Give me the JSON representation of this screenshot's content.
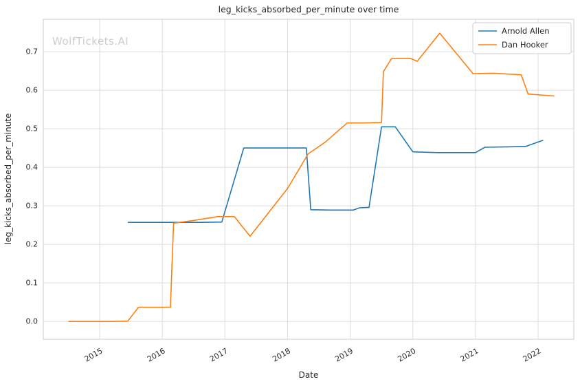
{
  "chart_data": {
    "type": "line",
    "title": "leg_kicks_absorbed_per_minute over time",
    "xlabel": "Date",
    "ylabel": "leg_kicks_absorbed_per_minute",
    "watermark": "WolfTickets.AI",
    "grid": true,
    "legend_position": "upper right",
    "xlim": [
      2014.1,
      2022.57
    ],
    "ylim": [
      -0.046,
      0.784
    ],
    "x_ticks": [
      {
        "value": 2015,
        "label": "2015"
      },
      {
        "value": 2016,
        "label": "2016"
      },
      {
        "value": 2017,
        "label": "2017"
      },
      {
        "value": 2018,
        "label": "2018"
      },
      {
        "value": 2019,
        "label": "2019"
      },
      {
        "value": 2020,
        "label": "2020"
      },
      {
        "value": 2021,
        "label": "2021"
      },
      {
        "value": 2022,
        "label": "2022"
      }
    ],
    "y_ticks": [
      {
        "value": 0.0,
        "label": "0.0"
      },
      {
        "value": 0.1,
        "label": "0.1"
      },
      {
        "value": 0.2,
        "label": "0.2"
      },
      {
        "value": 0.3,
        "label": "0.3"
      },
      {
        "value": 0.4,
        "label": "0.4"
      },
      {
        "value": 0.5,
        "label": "0.5"
      },
      {
        "value": 0.6,
        "label": "0.6"
      },
      {
        "value": 0.7,
        "label": "0.7"
      }
    ],
    "colors": {
      "grid": "#dddddd",
      "spine": "#cccccc",
      "text": "#262626",
      "watermark": "#cccccc",
      "series_blue": "#1f77b4",
      "series_orange": "#ff7f0e"
    },
    "series": [
      {
        "name": "Arnold Allen",
        "color": "#1f77b4",
        "points": [
          [
            2015.45,
            0.257
          ],
          [
            2015.9,
            0.257
          ],
          [
            2016.25,
            0.257
          ],
          [
            2016.6,
            0.257
          ],
          [
            2016.95,
            0.258
          ],
          [
            2017.3,
            0.45
          ],
          [
            2017.6,
            0.45
          ],
          [
            2018.0,
            0.45
          ],
          [
            2018.3,
            0.45
          ],
          [
            2018.37,
            0.29
          ],
          [
            2018.7,
            0.289
          ],
          [
            2019.05,
            0.289
          ],
          [
            2019.15,
            0.295
          ],
          [
            2019.3,
            0.296
          ],
          [
            2019.5,
            0.505
          ],
          [
            2019.72,
            0.505
          ],
          [
            2020.0,
            0.44
          ],
          [
            2020.4,
            0.438
          ],
          [
            2021.0,
            0.438
          ],
          [
            2021.15,
            0.452
          ],
          [
            2021.5,
            0.453
          ],
          [
            2021.8,
            0.454
          ],
          [
            2022.08,
            0.47
          ]
        ]
      },
      {
        "name": "Dan Hooker",
        "color": "#ff7f0e",
        "points": [
          [
            2014.5,
            0.0
          ],
          [
            2014.85,
            0.0
          ],
          [
            2015.2,
            0.0
          ],
          [
            2015.45,
            0.001
          ],
          [
            2015.62,
            0.037
          ],
          [
            2015.95,
            0.037
          ],
          [
            2016.13,
            0.037
          ],
          [
            2016.18,
            0.255
          ],
          [
            2016.5,
            0.262
          ],
          [
            2016.88,
            0.272
          ],
          [
            2017.15,
            0.272
          ],
          [
            2017.4,
            0.221
          ],
          [
            2018.0,
            0.345
          ],
          [
            2018.33,
            0.435
          ],
          [
            2018.6,
            0.465
          ],
          [
            2018.95,
            0.515
          ],
          [
            2019.2,
            0.515
          ],
          [
            2019.5,
            0.516
          ],
          [
            2019.53,
            0.648
          ],
          [
            2019.66,
            0.682
          ],
          [
            2019.97,
            0.682
          ],
          [
            2020.07,
            0.675
          ],
          [
            2020.43,
            0.748
          ],
          [
            2020.96,
            0.643
          ],
          [
            2021.29,
            0.644
          ],
          [
            2021.73,
            0.64
          ],
          [
            2021.84,
            0.59
          ],
          [
            2022.26,
            0.585
          ]
        ]
      }
    ]
  }
}
